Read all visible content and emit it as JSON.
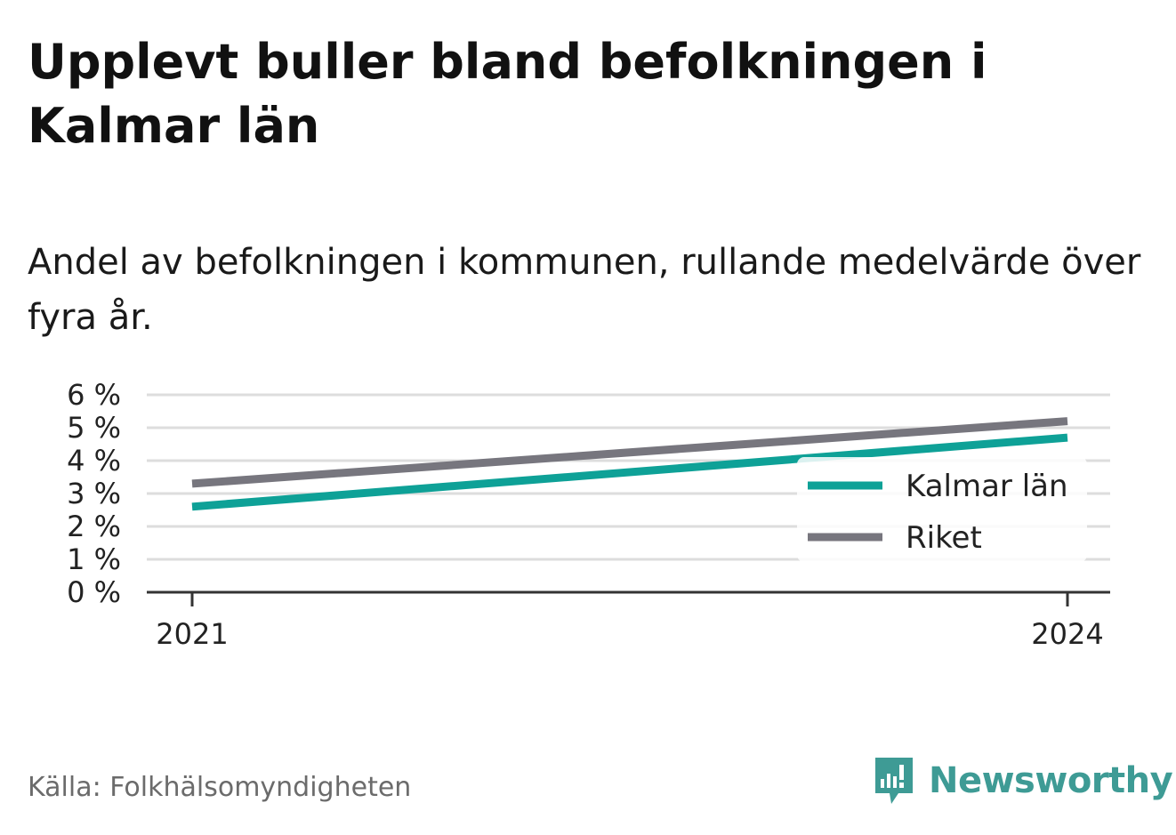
{
  "title": "Upplevt buller bland befolkningen i Kalmar län",
  "subtitle": "Andel av befolkningen i kommunen, rullande medelvärde över fyra år.",
  "source": "Källa: Folkhälsomyndigheten",
  "brand": {
    "name": "Newsworthy",
    "icon": "newsworthy-logo-icon",
    "color": "#3e9b95"
  },
  "colors": {
    "kalmar": "#0ea197",
    "riket": "#77767e",
    "grid": "#dddddd",
    "axis": "#333333"
  },
  "chart_data": {
    "type": "line",
    "title": "",
    "xlabel": "",
    "ylabel": "",
    "x": [
      2021,
      2024
    ],
    "x_tick_labels": [
      "2021",
      "2024"
    ],
    "y_ticks": [
      0,
      1,
      2,
      3,
      4,
      5,
      6
    ],
    "y_tick_labels": [
      "0 %",
      "1 %",
      "2 %",
      "3 %",
      "4 %",
      "5 %",
      "6 %"
    ],
    "ylim": [
      0,
      6
    ],
    "grid": true,
    "legend_position": "right",
    "series": [
      {
        "name": "Kalmar län",
        "values": [
          2.6,
          4.7
        ],
        "color": "#0ea197"
      },
      {
        "name": "Riket",
        "values": [
          3.3,
          5.2
        ],
        "color": "#77767e"
      }
    ]
  }
}
